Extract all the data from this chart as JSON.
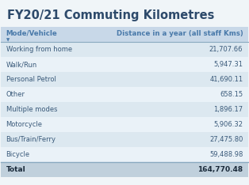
{
  "title": "FY20/21 Commuting Kilometres",
  "col1_header": "Mode/Vehicle",
  "col2_header": "Distance in a year (all staff Kms)",
  "rows": [
    [
      "Working from home",
      "21,707.66"
    ],
    [
      "Walk/Run",
      "5,947.31"
    ],
    [
      "Personal Petrol",
      "41,690.11"
    ],
    [
      "Other",
      "658.15"
    ],
    [
      "Multiple modes",
      "1,896.17"
    ],
    [
      "Motorcycle",
      "5,906.32"
    ],
    [
      "Bus/Train/Ferry",
      "27,475.80"
    ],
    [
      "Bicycle",
      "59,488.98"
    ]
  ],
  "total_label": "Total",
  "total_value": "164,770.48",
  "title_color": "#2d4a6b",
  "header_bg": "#c8d8e8",
  "header_text_color": "#4a7aaa",
  "row_bg_odd": "#dce8f0",
  "row_bg_even": "#eaf2f8",
  "total_bg": "#c0d0dc",
  "total_text_color": "#1a2a3a",
  "row_text_color": "#3a5a7a",
  "body_bg": "#f0f5f8",
  "separator_color": "#8aaac0"
}
